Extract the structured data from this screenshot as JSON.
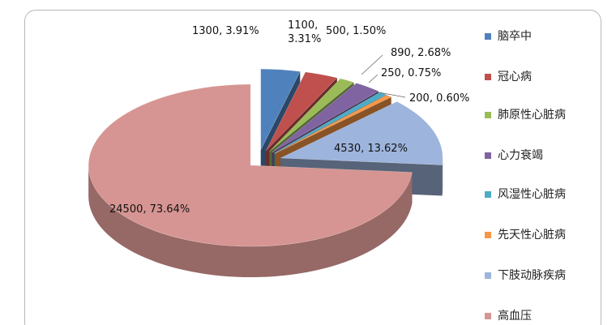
{
  "chart_data": {
    "type": "pie3d",
    "categories": [
      "脑卒中",
      "冠心病",
      "肺原性心脏病",
      "心力衰竭",
      "风湿性心脏病",
      "先天性心脏病",
      "下肢动脉疾病",
      "高血压"
    ],
    "values": [
      1300,
      1100,
      500,
      890,
      250,
      200,
      4530,
      24500
    ],
    "value_labels": [
      "1300, 3.91%",
      "1100, 3.31%",
      "500, 1.50%",
      "890, 2.68%",
      "250, 0.75%",
      "200, 0.60%",
      "4530, 13.62%",
      "24500, 73.64%"
    ],
    "colors": [
      "#4f81bd",
      "#c0504d",
      "#9bbb59",
      "#8064a2",
      "#4bacc6",
      "#f79646",
      "#9db4dc",
      "#d69592"
    ],
    "legend": "right"
  }
}
